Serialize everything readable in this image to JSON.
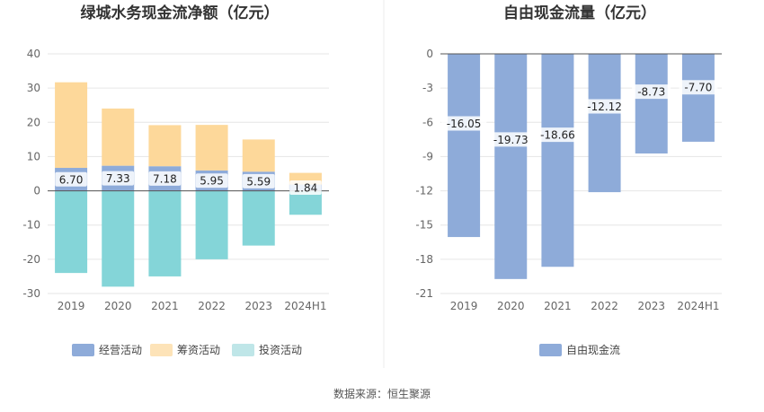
{
  "chart_data": [
    {
      "type": "bar",
      "stacked": true,
      "title": "绿城水务现金流净额（亿元）",
      "categories": [
        "2019",
        "2020",
        "2021",
        "2022",
        "2023",
        "2024H1"
      ],
      "ylim": [
        -30,
        40
      ],
      "yticks": [
        -30,
        -20,
        -10,
        0,
        10,
        20,
        30,
        40
      ],
      "series": [
        {
          "name": "经营活动",
          "color": "#8eabd9",
          "values": [
            6.7,
            7.33,
            7.18,
            5.95,
            5.59,
            1.84
          ],
          "labels": [
            "6.70",
            "7.33",
            "7.18",
            "5.95",
            "5.59",
            "1.84"
          ]
        },
        {
          "name": "筹资活动",
          "color": "#fdd89a",
          "values": [
            25.0,
            16.7,
            12.0,
            13.3,
            9.4,
            3.4
          ]
        },
        {
          "name": "投资活动",
          "color": "#84d5d8",
          "values": [
            -24.0,
            -28.0,
            -25.0,
            -20.0,
            -16.0,
            -7.0
          ]
        }
      ],
      "legend_colors": [
        "#8eabd9",
        "#fde3b8",
        "#bfe6e8"
      ],
      "legend": "bottom"
    },
    {
      "type": "bar",
      "title": "自由现金流量（亿元）",
      "categories": [
        "2019",
        "2020",
        "2021",
        "2022",
        "2023",
        "2024H1"
      ],
      "ylim": [
        -21,
        0
      ],
      "yticks": [
        -21,
        -18,
        -15,
        -12,
        -9,
        -6,
        -3,
        0
      ],
      "series": [
        {
          "name": "自由现金流",
          "color": "#8eabd9",
          "values": [
            -16.05,
            -19.73,
            -18.66,
            -12.12,
            -8.73,
            -7.7
          ],
          "labels": [
            "-16.05",
            "-19.73",
            "-18.66",
            "-12.12",
            "-8.73",
            "-7.70"
          ]
        }
      ],
      "legend_colors": [
        "#8eabd9"
      ],
      "legend": "bottom"
    }
  ],
  "source_text": "数据来源：恒生聚源"
}
